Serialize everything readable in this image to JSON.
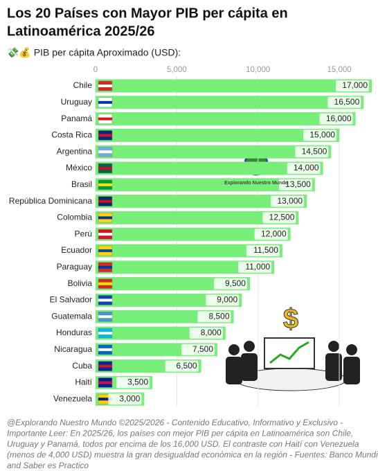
{
  "chart_data": {
    "type": "bar",
    "orientation": "horizontal",
    "title": [
      "Los 20 Países con Mayor PIB per cápita en",
      "Latinoamérica 2025/26"
    ],
    "subtitle": "💸💰 PIB per cápita Aproximado (USD):",
    "categories": [
      "Chile",
      "Uruguay",
      "Panamá",
      "Costa Rica",
      "Argentina",
      "México",
      "Brasil",
      "República Dominicana",
      "Colombia",
      "Perú",
      "Ecuador",
      "Paraguay",
      "Bolivia",
      "El Salvador",
      "Guatemala",
      "Honduras",
      "Nicaragua",
      "Cuba",
      "Haití",
      "Venezuela"
    ],
    "values": [
      17000,
      16500,
      16000,
      15000,
      14500,
      14000,
      13500,
      13000,
      12500,
      12000,
      11500,
      11000,
      9500,
      9000,
      8500,
      8000,
      7500,
      6500,
      3500,
      3000
    ],
    "value_labels": [
      "17,000",
      "16,500",
      "16,000",
      "15,000",
      "14,500",
      "14,000",
      "13,500",
      "13,000",
      "12,500",
      "12,000",
      "11,500",
      "11,000",
      "9,500",
      "9,000",
      "8,500",
      "8,000",
      "7,500",
      "6,500",
      "3,500",
      "3,000"
    ],
    "color": "#77ee77",
    "xlim": [
      0,
      17000
    ],
    "xticks": [
      0,
      {
        "value": 5000,
        "label": "5,000"
      },
      {
        "value": 10000,
        "label": "10,000"
      },
      {
        "value": 15000,
        "label": "15,000"
      }
    ],
    "grid": true,
    "annotations": [
      "Explorando Nuestro Mundo",
      "$"
    ],
    "caption": [
      "@Explorando Nuestro Mundo ©2025/2026 - Contenido Educativo, Informativo y Exclusivo -",
      "Importante Leer: En 2025/26, los países con mejor PIB per cápita en Latinoamérica son Chile,",
      "Uruguay y Panamá, todos por encima de los 16,000 USD. El contraste con Haití con Venezuela",
      "(menos de 4,000 USD) muestra la gran desigualdad económica en la región - Fuentes: Banco Mundial",
      "and Saber es Practico"
    ]
  }
}
